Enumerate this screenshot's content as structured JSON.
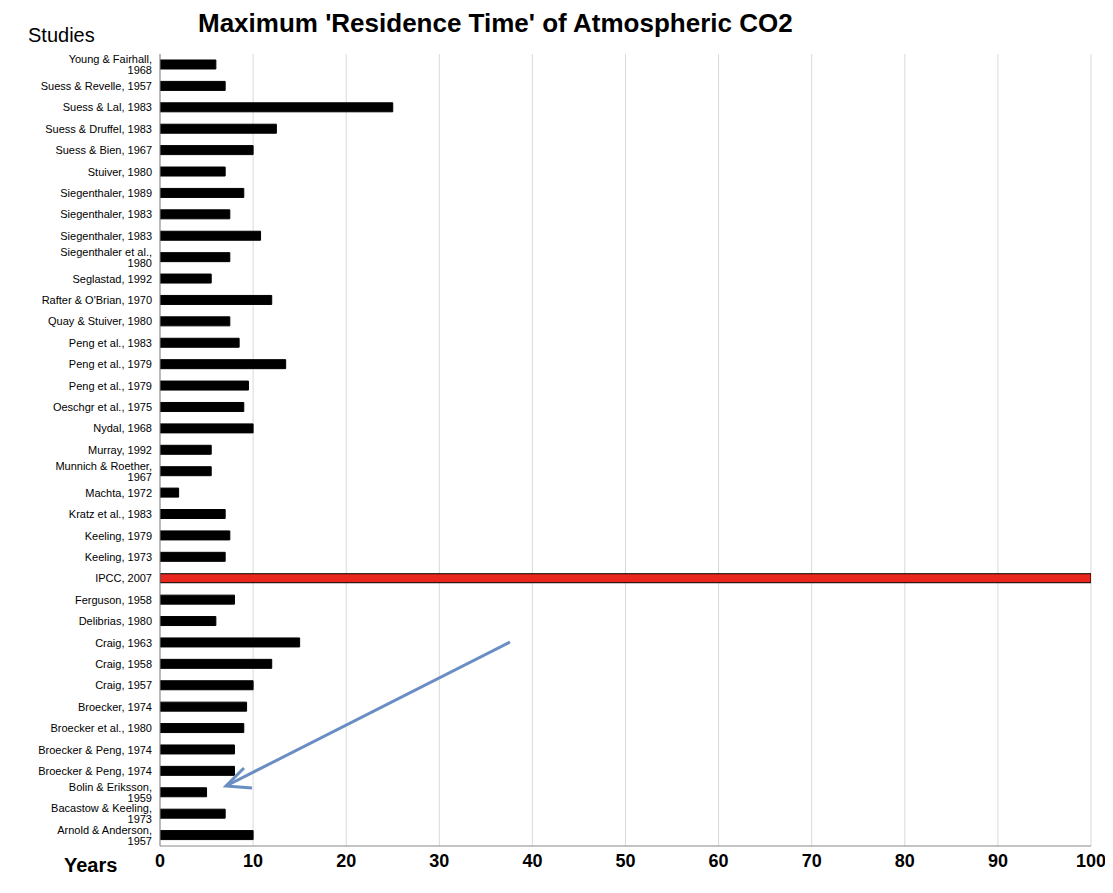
{
  "chart_data": {
    "type": "bar",
    "orientation": "horizontal",
    "title": "Maximum 'Residence Time' of Atmospheric CO2",
    "y_label": "Studies",
    "x_label": "Years",
    "categories": [
      "Young & Fairhall, 1968",
      "Suess & Revelle, 1957",
      "Suess & Lal, 1983",
      "Suess & Druffel, 1983",
      "Suess & Bien, 1967",
      "Stuiver, 1980",
      "Siegenthaler, 1989",
      "Siegenthaler, 1983",
      "Siegenthaler, 1983",
      "Siegenthaler et al., 1980",
      "Seglastad, 1992",
      "Rafter & O'Brian, 1970",
      "Quay & Stuiver, 1980",
      "Peng et al., 1983",
      "Peng et al., 1979",
      "Peng et al., 1979",
      "Oeschgr et al., 1975",
      "Nydal, 1968",
      "Murray, 1992",
      "Munnich & Roether, 1967",
      "Machta, 1972",
      "Kratz et al., 1983",
      "Keeling, 1979",
      "Keeling, 1973",
      "IPCC, 2007",
      "Ferguson, 1958",
      "Delibrias, 1980",
      "Craig, 1963",
      "Craig, 1958",
      "Craig, 1957",
      "Broecker, 1974",
      "Broecker et al., 1980",
      "Broecker & Peng, 1974",
      "Broecker & Peng, 1974",
      "Bolin & Eriksson, 1959",
      "Bacastow & Keeling, 1973",
      "Arnold & Anderson, 1957"
    ],
    "values": [
      6,
      7,
      25,
      12.5,
      10,
      7,
      9,
      7.5,
      10.8,
      7.5,
      5.5,
      12,
      7.5,
      8.5,
      13.5,
      9.5,
      9,
      10,
      5.5,
      5.5,
      2,
      7,
      7.5,
      7,
      100,
      8,
      6,
      15,
      12,
      10,
      9.3,
      9,
      8,
      8,
      5,
      7,
      10
    ],
    "colors": [
      "#000000",
      "#000000",
      "#000000",
      "#000000",
      "#000000",
      "#000000",
      "#000000",
      "#000000",
      "#000000",
      "#000000",
      "#000000",
      "#000000",
      "#000000",
      "#000000",
      "#000000",
      "#000000",
      "#000000",
      "#000000",
      "#000000",
      "#000000",
      "#000000",
      "#000000",
      "#000000",
      "#000000",
      "#e8261e",
      "#000000",
      "#000000",
      "#000000",
      "#000000",
      "#000000",
      "#000000",
      "#000000",
      "#000000",
      "#000000",
      "#000000",
      "#000000",
      "#000000"
    ],
    "xlim": [
      0,
      100
    ],
    "xticks": [
      0,
      10,
      20,
      30,
      40,
      50,
      60,
      70,
      80,
      90,
      100
    ],
    "grid": true
  }
}
